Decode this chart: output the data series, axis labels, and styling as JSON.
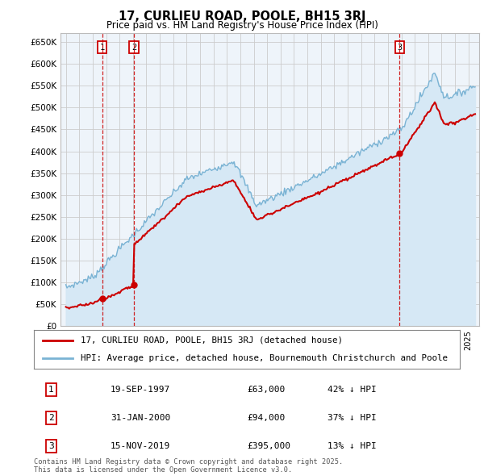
{
  "title": "17, CURLIEU ROAD, POOLE, BH15 3RJ",
  "subtitle": "Price paid vs. HM Land Registry's House Price Index (HPI)",
  "ylim": [
    0,
    670000
  ],
  "yticks": [
    0,
    50000,
    100000,
    150000,
    200000,
    250000,
    300000,
    350000,
    400000,
    450000,
    500000,
    550000,
    600000,
    650000
  ],
  "ytick_labels": [
    "£0",
    "£50K",
    "£100K",
    "£150K",
    "£200K",
    "£250K",
    "£300K",
    "£350K",
    "£400K",
    "£450K",
    "£500K",
    "£550K",
    "£600K",
    "£650K"
  ],
  "sale_years": [
    1997.708,
    2000.083,
    2019.875
  ],
  "sale_prices": [
    63000,
    94000,
    395000
  ],
  "sale_labels": [
    "1",
    "2",
    "3"
  ],
  "red_line_color": "#cc0000",
  "blue_line_color": "#7ab3d4",
  "blue_fill_color": "#d6e8f5",
  "vline_color": "#cc0000",
  "grid_color": "#cccccc",
  "bg_color": "#eef4fa",
  "legend_border_color": "#888888",
  "sale_box_color": "#cc0000",
  "legend_line1": "17, CURLIEU ROAD, POOLE, BH15 3RJ (detached house)",
  "legend_line2": "HPI: Average price, detached house, Bournemouth Christchurch and Poole",
  "table_rows": [
    [
      "1",
      "19-SEP-1997",
      "£63,000",
      "42% ↓ HPI"
    ],
    [
      "2",
      "31-JAN-2000",
      "£94,000",
      "37% ↓ HPI"
    ],
    [
      "3",
      "15-NOV-2019",
      "£395,000",
      "13% ↓ HPI"
    ]
  ],
  "footnote": "Contains HM Land Registry data © Crown copyright and database right 2025.\nThis data is licensed under the Open Government Licence v3.0."
}
